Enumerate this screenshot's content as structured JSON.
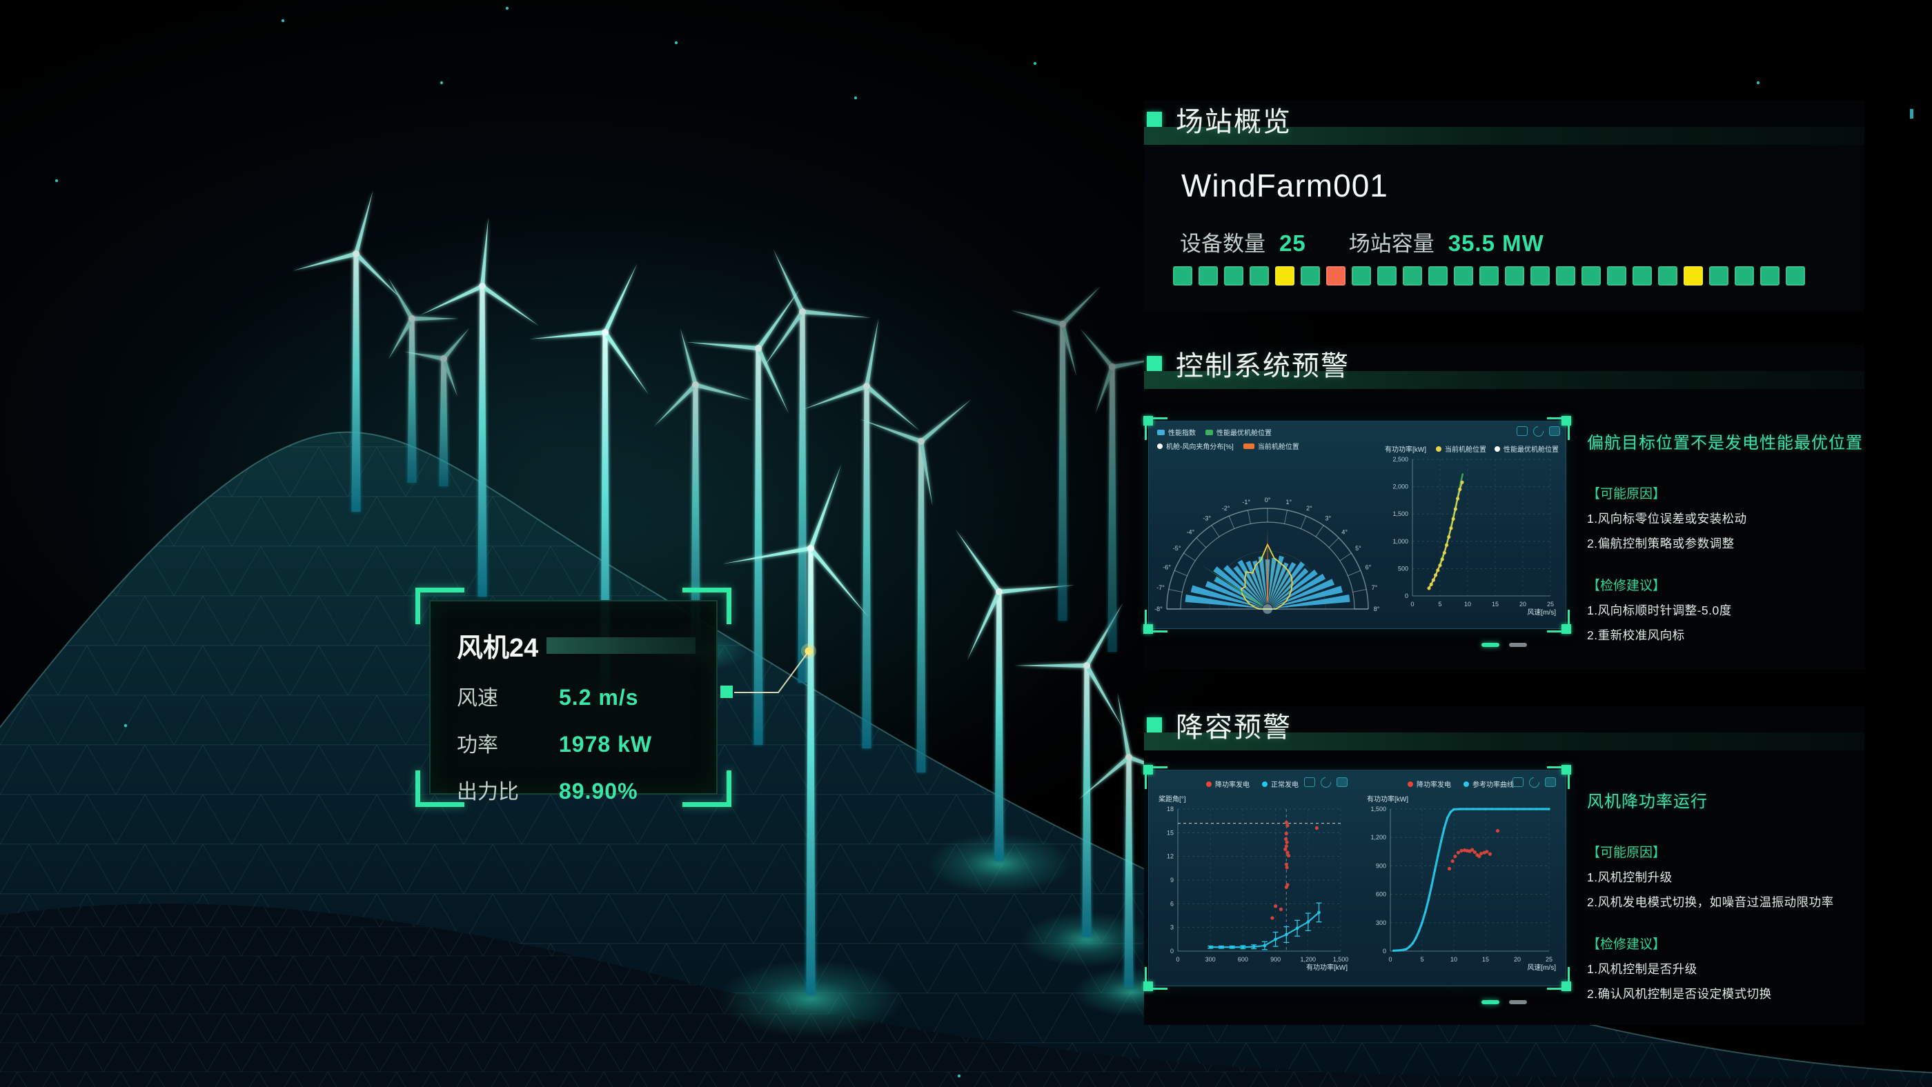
{
  "tooltip": {
    "title": "风机24",
    "rows": [
      {
        "label": "风速",
        "value": "5.2 m/s"
      },
      {
        "label": "功率",
        "value": "1978 kW"
      },
      {
        "label": "出力比",
        "value": "89.90%"
      }
    ]
  },
  "overview": {
    "section_title": "场站概览",
    "farm_name": "WindFarm001",
    "stats": [
      {
        "label": "设备数量",
        "value": "25"
      },
      {
        "label": "场站容量",
        "value": "35.5 MW"
      }
    ],
    "device_statuses": [
      "green",
      "green",
      "green",
      "green",
      "yellow",
      "green",
      "orange",
      "green",
      "green",
      "green",
      "green",
      "green",
      "green",
      "green",
      "green",
      "green",
      "green",
      "green",
      "green",
      "green",
      "yellow",
      "green",
      "green",
      "green",
      "green"
    ]
  },
  "control_alert": {
    "section_title": "控制系统预警",
    "alert_title": "偏航目标位置不是发电性能最优位置",
    "cause_heading": "【可能原因】",
    "causes": [
      "1.风向标零位误差或安装松动",
      "2.偏航控制策略或参数调整"
    ],
    "advice_heading": "【检修建议】",
    "advice": [
      "1.风向标顺时针调整-5.0度",
      "2.重新校准风向标"
    ],
    "pagination": {
      "active": 1,
      "total": 2
    }
  },
  "derate_alert": {
    "section_title": "降容预警",
    "alert_title": "风机降功率运行",
    "cause_heading": "【可能原因】",
    "causes": [
      "1.风机控制升级",
      "2.风机发电模式切换，如噪音过温振动限功率"
    ],
    "advice_heading": "【检修建议】",
    "advice": [
      "1.风机控制是否升级",
      "2.确认风机控制是否设定模式切换"
    ],
    "pagination": {
      "active": 1,
      "total": 2
    }
  },
  "colors": {
    "accent": "#2fe3a2",
    "bracket": "#2fe9a4",
    "status": {
      "green": "#1fb57c",
      "yellow": "#f6e40a",
      "orange": "#f5694b"
    },
    "chart": {
      "blue": "#3fb0dd",
      "green": "#3fae62",
      "orange": "#f07330",
      "yellow": "#e8d44d",
      "cyan": "#27c8e8",
      "red": "#e8453c",
      "white": "#ffffff"
    }
  },
  "charts": {
    "yaw_rose": {
      "type": "polar_fan",
      "legend": [
        {
          "label": "性能指数",
          "color": "#3fb0dd",
          "marker": "square"
        },
        {
          "label": "性能最优机舱位置",
          "color": "#3fae62",
          "marker": "square"
        },
        {
          "label": "机舱-风向夹角分布[%]",
          "color": "#ffffff",
          "marker": "dot"
        },
        {
          "label": "当前机舱位置",
          "color": "#f07330",
          "marker": "square"
        }
      ],
      "angle_labels": [
        "-8°",
        "-7°",
        "-6°",
        "-5°",
        "-4°",
        "-3°",
        "-2°",
        "-1°",
        "0°",
        "1°",
        "2°",
        "3°",
        "4°",
        "5°",
        "6°",
        "7°",
        "8°"
      ],
      "current_angle_label": "0°",
      "optimal_angle_label": "-5°",
      "bars": [
        1.0,
        0.95,
        0.8,
        0.73,
        0.8,
        0.72,
        0.64,
        0.67,
        0.62,
        0.6,
        0.64,
        0.6,
        0.62,
        0.66,
        0.6,
        0.64,
        0.7,
        0.67,
        0.74,
        0.79,
        0.86,
        0.93,
        1.0
      ],
      "distribution": [
        0.1,
        0.15,
        0.22,
        0.28,
        0.35,
        0.4,
        0.38,
        0.45,
        0.52,
        0.47,
        0.55,
        0.6,
        0.78,
        0.62,
        0.58,
        0.55,
        0.52,
        0.48,
        0.42,
        0.36,
        0.3,
        0.24,
        0.18,
        0.13,
        0.1
      ]
    },
    "yaw_power": {
      "type": "scatter_line",
      "ylabel": "有功功率[kW]",
      "xlabel": "风速[m/s]",
      "xticks": {
        "values": [
          0,
          5,
          10,
          15,
          20,
          25
        ],
        "labels": [
          "0",
          "5",
          "10",
          "15",
          "20",
          "25"
        ]
      },
      "yticks": {
        "values": [
          0,
          500,
          1000,
          1500,
          2000,
          2500
        ],
        "labels": [
          "0",
          "500",
          "1,000",
          "1,500",
          "2,000",
          "2,500"
        ]
      },
      "legend": [
        {
          "label": "当前机舱位置",
          "color": "#e8d44d",
          "marker": "dot"
        },
        {
          "label": "性能最优机舱位置",
          "color": "#ffffff",
          "marker": "dot"
        }
      ],
      "series": [
        {
          "name": "性能最优机舱位置",
          "type": "line",
          "color": "#3fae62",
          "width": 2.4,
          "points": [
            [
              3,
              150
            ],
            [
              4,
              330
            ],
            [
              5,
              580
            ],
            [
              6,
              880
            ],
            [
              7,
              1270
            ],
            [
              8,
              1720
            ],
            [
              8.7,
              2050
            ],
            [
              9.1,
              2230
            ]
          ]
        },
        {
          "name": "当前机舱位置",
          "type": "scatter_line",
          "color": "#e8d44d",
          "r": 2.6,
          "points": [
            [
              3,
              140
            ],
            [
              3.4,
              210
            ],
            [
              3.8,
              290
            ],
            [
              4.2,
              380
            ],
            [
              4.6,
              470
            ],
            [
              5,
              560
            ],
            [
              5.4,
              670
            ],
            [
              5.8,
              790
            ],
            [
              6.2,
              930
            ],
            [
              6.6,
              1080
            ],
            [
              7,
              1240
            ],
            [
              7.4,
              1410
            ],
            [
              7.8,
              1590
            ],
            [
              8.2,
              1780
            ],
            [
              8.6,
              1950
            ],
            [
              9,
              2080
            ]
          ]
        }
      ]
    },
    "pitch_power": {
      "type": "scatter",
      "ylabel": "桨距角[°]",
      "xlabel": "有功功率[kW]",
      "xticks": {
        "values": [
          0,
          300,
          600,
          900,
          1200,
          1500
        ],
        "labels": [
          "0",
          "300",
          "600",
          "900",
          "1,200",
          "1,500"
        ]
      },
      "yticks": {
        "values": [
          0,
          3,
          6,
          9,
          12,
          15,
          18
        ],
        "labels": [
          "0",
          "3",
          "6",
          "9",
          "12",
          "15",
          "18"
        ]
      },
      "legend": [
        {
          "label": "降功率发电",
          "color": "#e8453c",
          "marker": "dot"
        },
        {
          "label": "正常发电",
          "color": "#27c8e8",
          "marker": "dot"
        }
      ],
      "ref_lines": [
        {
          "axis": "y",
          "value": 16.2,
          "color": "#cfd8da"
        },
        {
          "axis": "x",
          "value": 1000,
          "color": "#9fb4bb"
        }
      ],
      "series": [
        {
          "name": "正常发电",
          "type": "errline",
          "color": "#27c8e8",
          "width": 2.2,
          "r": 2.4,
          "points": [
            [
              300,
              0.5,
              0.15
            ],
            [
              400,
              0.5,
              0.15
            ],
            [
              500,
              0.5,
              0.15
            ],
            [
              600,
              0.5,
              0.2
            ],
            [
              700,
              0.55,
              0.25
            ],
            [
              800,
              0.7,
              0.5
            ],
            [
              900,
              1.5,
              0.9
            ],
            [
              1000,
              2.1,
              1.0
            ],
            [
              1100,
              2.9,
              1.0
            ],
            [
              1200,
              3.7,
              1.1
            ],
            [
              1300,
              4.9,
              1.2
            ]
          ]
        },
        {
          "name": "降功率发电",
          "type": "scatter",
          "color": "#e8453c",
          "r": 2.6,
          "points": [
            [
              1000,
              16.3
            ],
            [
              1010,
              15.9
            ],
            [
              1000,
              14.9
            ],
            [
              995,
              14.2
            ],
            [
              1005,
              13.8
            ],
            [
              1000,
              13.3
            ],
            [
              990,
              12.9
            ],
            [
              1010,
              12.5
            ],
            [
              1020,
              12.1
            ],
            [
              1000,
              11.0
            ],
            [
              1005,
              10.6
            ],
            [
              1010,
              8.4
            ],
            [
              1000,
              8.1
            ],
            [
              900,
              5.7
            ],
            [
              950,
              5.3
            ],
            [
              870,
              4.2
            ],
            [
              1280,
              15.6
            ]
          ]
        }
      ]
    },
    "power_wind": {
      "type": "scatter",
      "ylabel": "有功功率[kW]",
      "xlabel": "风速[m/s]",
      "xticks": {
        "values": [
          0,
          5,
          10,
          15,
          20,
          25
        ],
        "labels": [
          "0",
          "5",
          "10",
          "15",
          "20",
          "25"
        ]
      },
      "yticks": {
        "values": [
          0,
          300,
          600,
          900,
          1200,
          1500
        ],
        "labels": [
          "0",
          "300",
          "600",
          "900",
          "1,200",
          "1,500"
        ]
      },
      "legend": [
        {
          "label": "降功率发电",
          "color": "#e8453c",
          "marker": "dot"
        },
        {
          "label": "参考功率曲线",
          "color": "#27c8e8",
          "marker": "dot"
        }
      ],
      "series": [
        {
          "name": "参考功率曲线",
          "type": "line",
          "color": "#27c8e8",
          "width": 3.2,
          "dots": true,
          "r": 1.6,
          "points": [
            [
              0.5,
              5
            ],
            [
              1.5,
              8
            ],
            [
              2.5,
              20
            ],
            [
              3,
              45
            ],
            [
              3.5,
              80
            ],
            [
              4,
              135
            ],
            [
              4.5,
              210
            ],
            [
              5,
              300
            ],
            [
              5.5,
              410
            ],
            [
              6,
              540
            ],
            [
              6.5,
              690
            ],
            [
              7,
              850
            ],
            [
              7.5,
              1010
            ],
            [
              8,
              1160
            ],
            [
              8.5,
              1300
            ],
            [
              9,
              1410
            ],
            [
              9.5,
              1470
            ],
            [
              10,
              1497
            ],
            [
              11,
              1500
            ],
            [
              12,
              1500
            ],
            [
              13,
              1500
            ],
            [
              14,
              1500
            ],
            [
              15,
              1500
            ],
            [
              16,
              1500
            ],
            [
              17,
              1500
            ],
            [
              18,
              1500
            ],
            [
              19,
              1500
            ],
            [
              20,
              1500
            ],
            [
              21,
              1500
            ],
            [
              22,
              1500
            ],
            [
              23,
              1500
            ],
            [
              24,
              1500
            ],
            [
              25,
              1500
            ]
          ]
        },
        {
          "name": "降功率发电",
          "type": "scatter",
          "color": "#e8453c",
          "r": 2.6,
          "points": [
            [
              9.3,
              870
            ],
            [
              9.8,
              950
            ],
            [
              10.2,
              1000
            ],
            [
              10.7,
              1040
            ],
            [
              11.2,
              1060
            ],
            [
              11.7,
              1065
            ],
            [
              12.1,
              1060
            ],
            [
              12.5,
              1055
            ],
            [
              12.9,
              1070
            ],
            [
              13.3,
              1045
            ],
            [
              13.7,
              1015
            ],
            [
              14,
              1000
            ],
            [
              14.3,
              1030
            ],
            [
              14.8,
              1040
            ],
            [
              15.2,
              1050
            ],
            [
              15.7,
              1025
            ],
            [
              16.9,
              1270
            ]
          ]
        }
      ]
    }
  }
}
